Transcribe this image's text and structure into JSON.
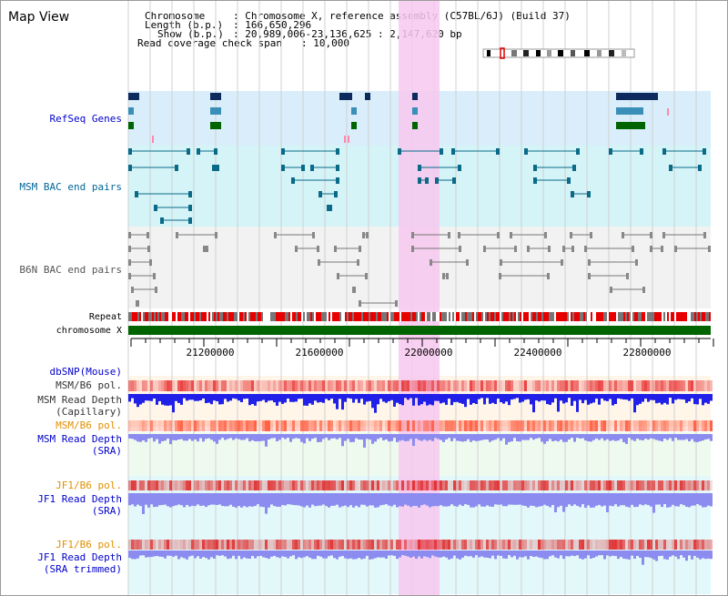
{
  "title": "Map View",
  "header": {
    "chromosome_label": "Chromosome",
    "chromosome_value": ": Chromosome X, reference assembly (C57BL/6J) (Build 37)",
    "length_label": "Length (b.p.)",
    "length_value": ": 166,650,296",
    "show_label": "Show (b.p.)",
    "show_value": ": 20,989,006-23,136,625 : 2,147,620 bp",
    "coverage_label": "Read coverage check span",
    "coverage_value": ": 10,000"
  },
  "tracks": {
    "refseq": "RefSeq Genes",
    "msm_bac": "MSM BAC end pairs",
    "b6n_bac": "B6N BAC end pairs",
    "repeat": "Repeat",
    "chromosome": "chromosome X",
    "dbsnp": "dbSNP(Mouse)",
    "msm_b6_pol": "MSM/B6 pol.",
    "msm_depth_cap_1": "MSM Read Depth",
    "msm_depth_cap_2": "(Capillary)",
    "msm_b6_pol2": "MSM/B6 pol.",
    "msm_depth_sra_1": "MSM Read Depth",
    "msm_depth_sra_2": "(SRA)",
    "jf1_b6_pol": "JF1/B6 pol.",
    "jf1_depth_sra_1": "JF1 Read Depth",
    "jf1_depth_sra_2": "(SRA)",
    "jf1_b6_pol2": "JF1/B6 pol.",
    "jf1_depth_trim_1": "JF1 Read Depth",
    "jf1_depth_trim_2": "(SRA trimmed)"
  },
  "axis": {
    "ticks": [
      "21200000",
      "21600000",
      "22000000",
      "22400000",
      "22800000"
    ]
  },
  "colors": {
    "highlight": "#f7c8ee",
    "refseq_bg": "#d9eefa",
    "msm_bg": "#d4f4f8",
    "b6n_bg": "#f2f2f2",
    "chromosome_bar": "#006400",
    "depth_cap": "#2020e8",
    "depth_sra": "#8c8cf0",
    "track_navy": "#0c2a5e",
    "track_teal": "#0a6a88",
    "track_green": "#006400"
  }
}
